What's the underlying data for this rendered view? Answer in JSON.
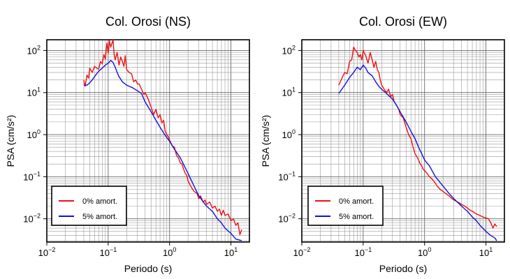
{
  "chart_data": [
    {
      "type": "line",
      "title": "Col. Orosi (NS)",
      "xlabel": "Periodo (s)",
      "ylabel": "PSA (cm/s²)",
      "x_scale": "log",
      "y_scale": "log",
      "xlim": [
        0.01,
        20
      ],
      "ylim": [
        0.0028,
        180
      ],
      "grid": true,
      "legend_position": "bottom-left",
      "x_ticks": [
        {
          "value": 0.01,
          "base": "10",
          "exp": "−2"
        },
        {
          "value": 0.1,
          "base": "10",
          "exp": "−1"
        },
        {
          "value": 1,
          "base": "10",
          "exp": "0"
        },
        {
          "value": 10,
          "base": "10",
          "exp": "1"
        }
      ],
      "y_ticks": [
        {
          "value": 0.01,
          "base": "10",
          "exp": "−2"
        },
        {
          "value": 0.1,
          "base": "10",
          "exp": "−1"
        },
        {
          "value": 1,
          "base": "10",
          "exp": "0"
        },
        {
          "value": 10,
          "base": "10",
          "exp": "1"
        },
        {
          "value": 100,
          "base": "10",
          "exp": "2"
        }
      ],
      "series": [
        {
          "name": "0% amort.",
          "color": "#ee1111",
          "points": [
            [
              0.04,
              20
            ],
            [
              0.042,
              14
            ],
            [
              0.045,
              26
            ],
            [
              0.048,
              22
            ],
            [
              0.05,
              38
            ],
            [
              0.055,
              30
            ],
            [
              0.06,
              42
            ],
            [
              0.065,
              38
            ],
            [
              0.07,
              36
            ],
            [
              0.075,
              55
            ],
            [
              0.08,
              48
            ],
            [
              0.085,
              80
            ],
            [
              0.09,
              62
            ],
            [
              0.095,
              150
            ],
            [
              0.1,
              85
            ],
            [
              0.105,
              170
            ],
            [
              0.11,
              120
            ],
            [
              0.12,
              180
            ],
            [
              0.125,
              80
            ],
            [
              0.13,
              60
            ],
            [
              0.14,
              90
            ],
            [
              0.15,
              45
            ],
            [
              0.16,
              70
            ],
            [
              0.17,
              55
            ],
            [
              0.18,
              42
            ],
            [
              0.19,
              75
            ],
            [
              0.2,
              35
            ],
            [
              0.22,
              30
            ],
            [
              0.24,
              28
            ],
            [
              0.26,
              18
            ],
            [
              0.28,
              20
            ],
            [
              0.3,
              16
            ],
            [
              0.32,
              16
            ],
            [
              0.35,
              12
            ],
            [
              0.38,
              9
            ],
            [
              0.4,
              10
            ],
            [
              0.45,
              7
            ],
            [
              0.5,
              4.5
            ],
            [
              0.55,
              3
            ],
            [
              0.6,
              4
            ],
            [
              0.65,
              2.5
            ],
            [
              0.7,
              3
            ],
            [
              0.75,
              1.9
            ],
            [
              0.8,
              2.2
            ],
            [
              0.85,
              1.2
            ],
            [
              0.9,
              1.0
            ],
            [
              0.95,
              0.9
            ],
            [
              1.0,
              0.75
            ],
            [
              1.1,
              0.55
            ],
            [
              1.2,
              0.5
            ],
            [
              1.3,
              0.32
            ],
            [
              1.4,
              0.28
            ],
            [
              1.5,
              0.21
            ],
            [
              1.6,
              0.2
            ],
            [
              1.7,
              0.15
            ],
            [
              1.8,
              0.12
            ],
            [
              1.9,
              0.11
            ],
            [
              2.0,
              0.08
            ],
            [
              2.2,
              0.06
            ],
            [
              2.5,
              0.045
            ],
            [
              2.8,
              0.04
            ],
            [
              3.0,
              0.03
            ],
            [
              3.2,
              0.035
            ],
            [
              3.5,
              0.025
            ],
            [
              3.8,
              0.028
            ],
            [
              4.0,
              0.022
            ],
            [
              4.5,
              0.025
            ],
            [
              5.0,
              0.018
            ],
            [
              5.5,
              0.02
            ],
            [
              6.0,
              0.015
            ],
            [
              6.5,
              0.017
            ],
            [
              7.0,
              0.012
            ],
            [
              7.5,
              0.016
            ],
            [
              8.0,
              0.012
            ],
            [
              9.0,
              0.013
            ],
            [
              10,
              0.009
            ],
            [
              11,
              0.01
            ],
            [
              12,
              0.007
            ],
            [
              13,
              0.008
            ],
            [
              14,
              0.0042
            ],
            [
              15,
              0.0055
            ]
          ]
        },
        {
          "name": "5% amort.",
          "color": "#1111dd",
          "points": [
            [
              0.04,
              15
            ],
            [
              0.045,
              15
            ],
            [
              0.05,
              17
            ],
            [
              0.055,
              20
            ],
            [
              0.06,
              24
            ],
            [
              0.065,
              28
            ],
            [
              0.07,
              32
            ],
            [
              0.08,
              38
            ],
            [
              0.09,
              45
            ],
            [
              0.1,
              50
            ],
            [
              0.11,
              58
            ],
            [
              0.12,
              52
            ],
            [
              0.13,
              40
            ],
            [
              0.14,
              30
            ],
            [
              0.15,
              24
            ],
            [
              0.17,
              18
            ],
            [
              0.2,
              15
            ],
            [
              0.25,
              13
            ],
            [
              0.3,
              11
            ],
            [
              0.35,
              9.5
            ],
            [
              0.4,
              6
            ],
            [
              0.5,
              3.5
            ],
            [
              0.6,
              2.2
            ],
            [
              0.7,
              1.5
            ],
            [
              0.8,
              1.1
            ],
            [
              0.9,
              0.85
            ],
            [
              1.0,
              0.7
            ],
            [
              1.2,
              0.45
            ],
            [
              1.5,
              0.28
            ],
            [
              2.0,
              0.12
            ],
            [
              2.5,
              0.06
            ],
            [
              3.0,
              0.035
            ],
            [
              4.0,
              0.02
            ],
            [
              5.0,
              0.015
            ],
            [
              6.0,
              0.01
            ],
            [
              7.0,
              0.008
            ],
            [
              8.0,
              0.006
            ],
            [
              10,
              0.0045
            ],
            [
              12,
              0.0033
            ],
            [
              14,
              0.0031
            ],
            [
              15,
              0.003
            ]
          ]
        }
      ]
    },
    {
      "type": "line",
      "title": "Col. Orosi (EW)",
      "xlabel": "Periodo (s)",
      "ylabel": "PSA (cm/s²)",
      "x_scale": "log",
      "y_scale": "log",
      "xlim": [
        0.01,
        20
      ],
      "ylim": [
        0.0028,
        180
      ],
      "grid": true,
      "legend_position": "bottom-left",
      "x_ticks": [
        {
          "value": 0.01,
          "base": "10",
          "exp": "−2"
        },
        {
          "value": 0.1,
          "base": "10",
          "exp": "−1"
        },
        {
          "value": 1,
          "base": "10",
          "exp": "0"
        },
        {
          "value": 10,
          "base": "10",
          "exp": "1"
        }
      ],
      "y_ticks": [
        {
          "value": 0.01,
          "base": "10",
          "exp": "−2"
        },
        {
          "value": 0.1,
          "base": "10",
          "exp": "−1"
        },
        {
          "value": 1,
          "base": "10",
          "exp": "0"
        },
        {
          "value": 10,
          "base": "10",
          "exp": "1"
        },
        {
          "value": 100,
          "base": "10",
          "exp": "2"
        }
      ],
      "series": [
        {
          "name": "0% amort.",
          "color": "#ee1111",
          "points": [
            [
              0.04,
              15
            ],
            [
              0.045,
              22
            ],
            [
              0.05,
              30
            ],
            [
              0.055,
              28
            ],
            [
              0.06,
              55
            ],
            [
              0.065,
              60
            ],
            [
              0.07,
              120
            ],
            [
              0.075,
              100
            ],
            [
              0.08,
              90
            ],
            [
              0.085,
              70
            ],
            [
              0.09,
              80
            ],
            [
              0.095,
              60
            ],
            [
              0.1,
              100
            ],
            [
              0.11,
              75
            ],
            [
              0.12,
              50
            ],
            [
              0.13,
              90
            ],
            [
              0.14,
              60
            ],
            [
              0.15,
              40
            ],
            [
              0.16,
              55
            ],
            [
              0.17,
              35
            ],
            [
              0.18,
              30
            ],
            [
              0.19,
              20
            ],
            [
              0.2,
              15
            ],
            [
              0.22,
              12
            ],
            [
              0.24,
              10
            ],
            [
              0.26,
              12
            ],
            [
              0.28,
              8
            ],
            [
              0.3,
              9
            ],
            [
              0.32,
              6
            ],
            [
              0.35,
              5
            ],
            [
              0.38,
              4
            ],
            [
              0.4,
              3
            ],
            [
              0.45,
              2.5
            ],
            [
              0.5,
              1.5
            ],
            [
              0.55,
              1.0
            ],
            [
              0.6,
              0.8
            ],
            [
              0.65,
              0.5
            ],
            [
              0.7,
              0.35
            ],
            [
              0.75,
              0.3
            ],
            [
              0.8,
              0.25
            ],
            [
              0.85,
              0.2
            ],
            [
              0.9,
              0.18
            ],
            [
              0.95,
              0.15
            ],
            [
              1.0,
              0.14
            ],
            [
              1.1,
              0.12
            ],
            [
              1.2,
              0.1
            ],
            [
              1.3,
              0.09
            ],
            [
              1.4,
              0.08
            ],
            [
              1.5,
              0.07
            ],
            [
              1.6,
              0.06
            ],
            [
              1.7,
              0.055
            ],
            [
              1.8,
              0.05
            ],
            [
              2.0,
              0.045
            ],
            [
              2.2,
              0.04
            ],
            [
              2.5,
              0.035
            ],
            [
              2.8,
              0.03
            ],
            [
              3.0,
              0.028
            ],
            [
              3.5,
              0.025
            ],
            [
              4.0,
              0.022
            ],
            [
              4.5,
              0.02
            ],
            [
              5.0,
              0.018
            ],
            [
              5.5,
              0.016
            ],
            [
              6.0,
              0.015
            ],
            [
              7.0,
              0.013
            ],
            [
              8.0,
              0.012
            ],
            [
              9.0,
              0.011
            ],
            [
              10,
              0.0105
            ],
            [
              11,
              0.01
            ],
            [
              12,
              0.008
            ],
            [
              13,
              0.006
            ],
            [
              14,
              0.0075
            ],
            [
              15,
              0.0065
            ]
          ]
        },
        {
          "name": "5% amort.",
          "color": "#1111dd",
          "points": [
            [
              0.04,
              9.5
            ],
            [
              0.05,
              15
            ],
            [
              0.06,
              23
            ],
            [
              0.07,
              30
            ],
            [
              0.08,
              40
            ],
            [
              0.09,
              35
            ],
            [
              0.1,
              45
            ],
            [
              0.11,
              38
            ],
            [
              0.12,
              30
            ],
            [
              0.14,
              25
            ],
            [
              0.16,
              18
            ],
            [
              0.18,
              14
            ],
            [
              0.2,
              12
            ],
            [
              0.25,
              9
            ],
            [
              0.3,
              7
            ],
            [
              0.35,
              5
            ],
            [
              0.4,
              3.5
            ],
            [
              0.5,
              2
            ],
            [
              0.6,
              1.2
            ],
            [
              0.7,
              0.8
            ],
            [
              0.8,
              0.5
            ],
            [
              0.9,
              0.35
            ],
            [
              1.0,
              0.25
            ],
            [
              1.2,
              0.18
            ],
            [
              1.5,
              0.1
            ],
            [
              2.0,
              0.06
            ],
            [
              2.5,
              0.04
            ],
            [
              3.0,
              0.03
            ],
            [
              4.0,
              0.02
            ],
            [
              5.0,
              0.015
            ],
            [
              6.0,
              0.011
            ],
            [
              7.0,
              0.009
            ],
            [
              8.0,
              0.007
            ],
            [
              10,
              0.005
            ],
            [
              12,
              0.004
            ],
            [
              14,
              0.0035
            ],
            [
              15,
              0.003
            ]
          ]
        }
      ]
    }
  ]
}
